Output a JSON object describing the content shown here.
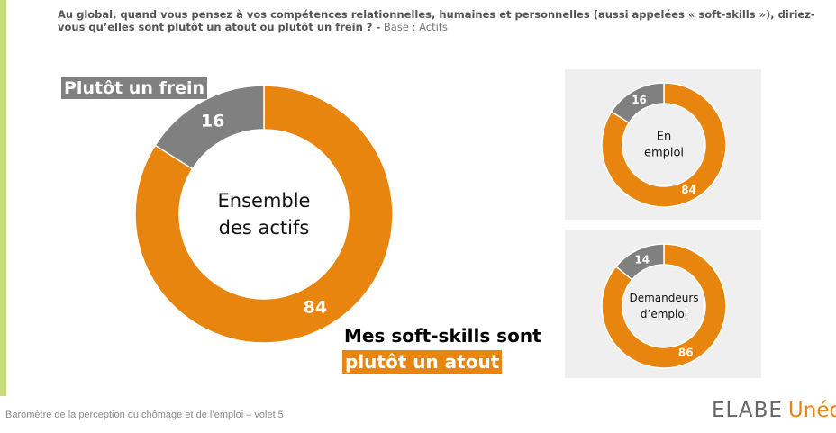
{
  "question": {
    "bold": "Au global, quand vous pensez à vos compétences relationnelles, humaines et personnelles (aussi appelées « soft-skills »), diriez-vous qu’elles sont plutôt un atout ou plutôt un frein ? -",
    "base": " Base : Actifs"
  },
  "labels": {
    "frein": "Plutôt un frein",
    "atout_line1": "Mes soft-skills sont",
    "atout_line2": "plutôt un atout"
  },
  "chart_data": [
    {
      "type": "pie",
      "variant": "donut",
      "center_label": [
        "Ensemble",
        "des actifs"
      ],
      "categories": [
        "Plutôt un atout",
        "Plutôt un frein"
      ],
      "values": [
        84,
        16
      ],
      "colors": [
        "#e8850e",
        "#808080"
      ]
    },
    {
      "type": "pie",
      "variant": "donut",
      "center_label": [
        "En",
        "emploi"
      ],
      "categories": [
        "Plutôt un atout",
        "Plutôt un frein"
      ],
      "values": [
        84,
        16
      ],
      "colors": [
        "#e8850e",
        "#808080"
      ]
    },
    {
      "type": "pie",
      "variant": "donut",
      "center_label": [
        "Demandeurs",
        "d’emploi"
      ],
      "categories": [
        "Plutôt un atout",
        "Plutôt un frein"
      ],
      "values": [
        86,
        14
      ],
      "colors": [
        "#e8850e",
        "#808080"
      ]
    }
  ],
  "footer": {
    "text": "Baromètre de la perception du chômage et de l’emploi – volet 5"
  },
  "logo": {
    "elabe": "ELABE",
    "unedic": "Unédic"
  }
}
